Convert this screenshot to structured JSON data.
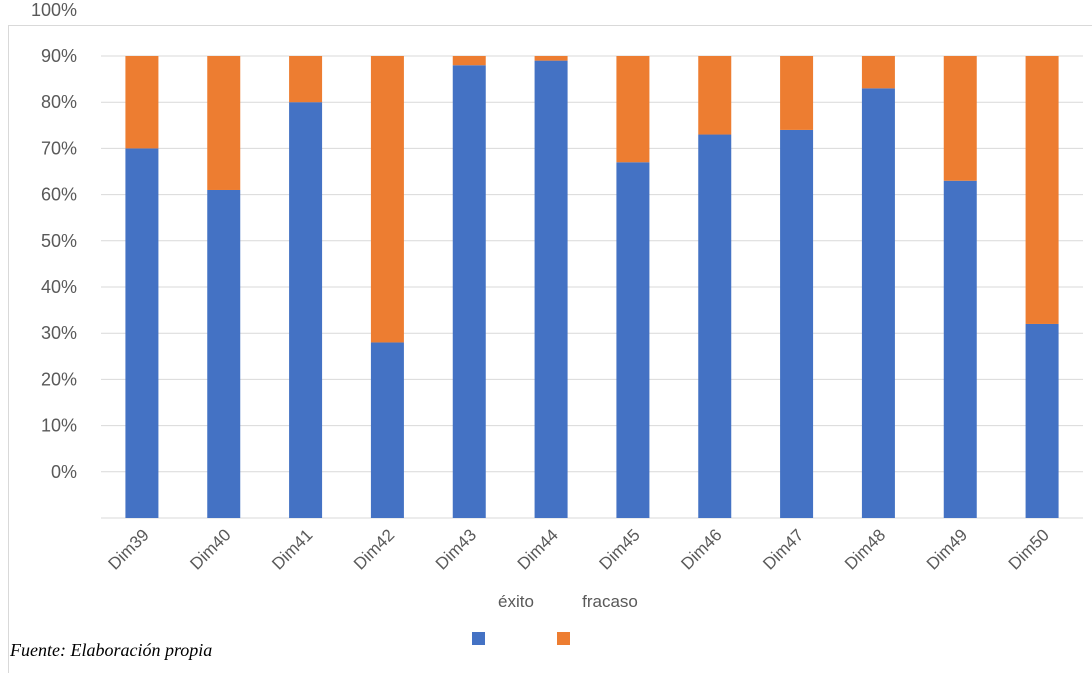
{
  "colors": {
    "exito": "#4472C4",
    "fracaso": "#ED7D31",
    "gridline": "#d9d9d9",
    "text": "#595959"
  },
  "source_note": "Fuente: Elaboración propia",
  "chart_data": {
    "type": "bar",
    "stacked": true,
    "categories": [
      "Dim39",
      "Dim40",
      "Dim41",
      "Dim42",
      "Dim43",
      "Dim44",
      "Dim45",
      "Dim46",
      "Dim47",
      "Dim48",
      "Dim49",
      "Dim50"
    ],
    "series": [
      {
        "name": "éxito",
        "values": [
          80,
          71,
          90,
          38,
          98,
          99,
          77,
          83,
          84,
          93,
          73,
          42
        ]
      },
      {
        "name": "fracaso",
        "values": [
          20,
          29,
          10,
          62,
          2,
          1,
          23,
          17,
          16,
          7,
          27,
          58
        ]
      }
    ],
    "y_tick_labels": [
      "0%",
      "10%",
      "20%",
      "30%",
      "40%",
      "50%",
      "60%",
      "70%",
      "80%",
      "90%",
      "100%"
    ],
    "ylim": [
      0,
      100
    ],
    "grid": true,
    "legend_position": "bottom",
    "title": "",
    "xlabel": "",
    "ylabel": ""
  }
}
